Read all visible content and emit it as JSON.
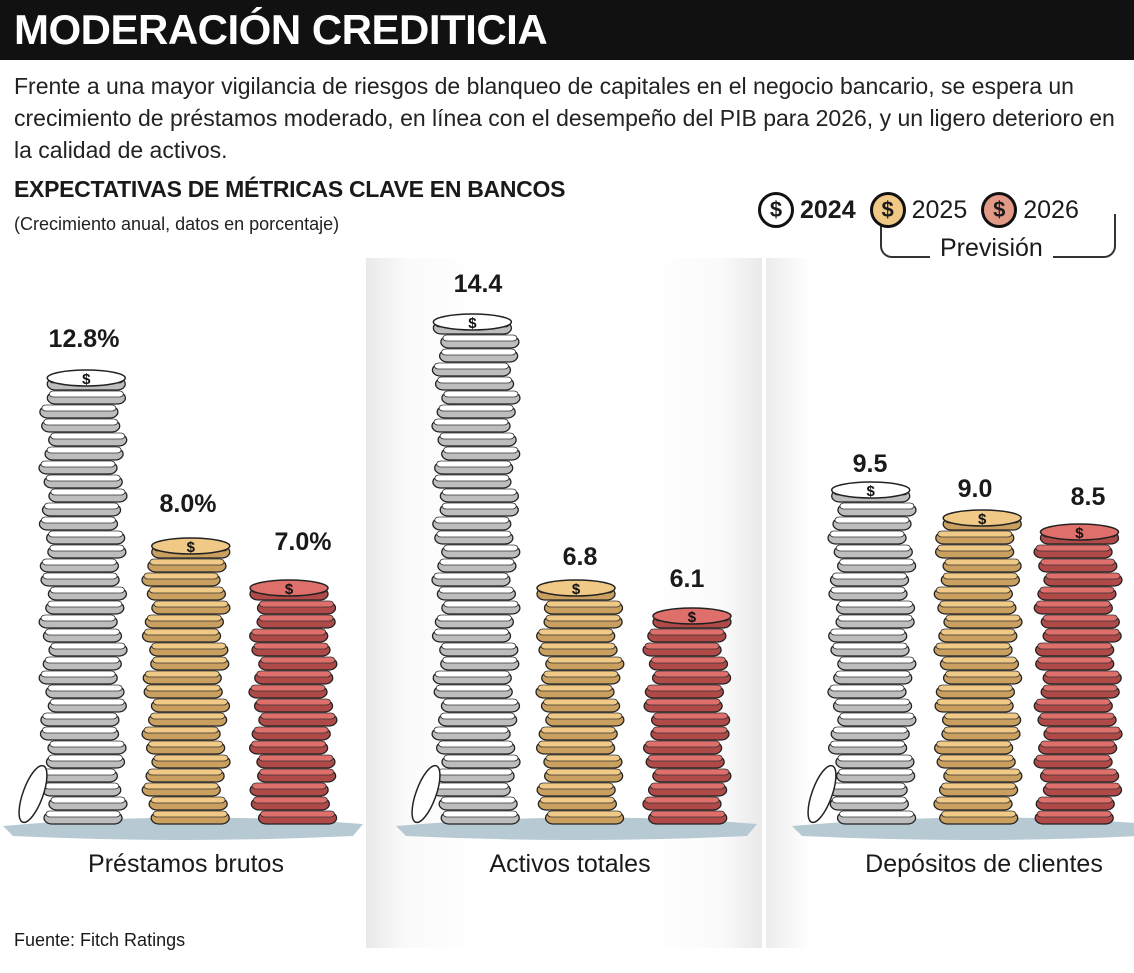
{
  "header": {
    "title": "MODERACIÓN CREDITICIA",
    "intro": "Frente a una mayor vigilancia de riesgos de blanqueo de capitales en el negocio bancario, se espera un crecimiento de préstamos moderado, en línea con el desempeño del PIB para 2026, y un ligero deterioro en la calidad de activos.",
    "subtitle": "EXPECTATIVAS DE MÉTRICAS CLAVE EN BANCOS",
    "note": "(Crecimiento anual, datos en porcentaje)"
  },
  "legend": {
    "items": [
      {
        "label": "2024",
        "symbol": "$",
        "color": "#ffffff"
      },
      {
        "label": "2025",
        "symbol": "$",
        "color": "#f0c987"
      },
      {
        "label": "2026",
        "symbol": "$",
        "color": "#e29a86"
      }
    ],
    "bracket_label": "Previsión"
  },
  "source": {
    "label": "Fuente:",
    "value": " Fitch Ratings"
  },
  "chart_data": {
    "type": "bar",
    "title": "EXPECTATIVAS DE MÉTRICAS CLAVE EN BANCOS",
    "ylabel": "Crecimiento anual (%)",
    "categories": [
      "Préstamos brutos",
      "Activos totales",
      "Depósitos de clientes"
    ],
    "series": [
      {
        "name": "2024",
        "color": "#ffffff",
        "values": [
          12.8,
          14.4,
          9.5
        ]
      },
      {
        "name": "2025",
        "color": "#f0c987",
        "values": [
          8.0,
          6.8,
          9.0
        ]
      },
      {
        "name": "2026",
        "color": "#de6f6b",
        "values": [
          7.0,
          6.1,
          8.5
        ]
      }
    ],
    "value_labels": [
      [
        "12.8%",
        "8.0%",
        "7.0%"
      ],
      [
        "14.4",
        "6.8",
        "6.1"
      ],
      [
        "9.5",
        "9.0",
        "8.5"
      ]
    ],
    "ylim": [
      0,
      15
    ]
  }
}
